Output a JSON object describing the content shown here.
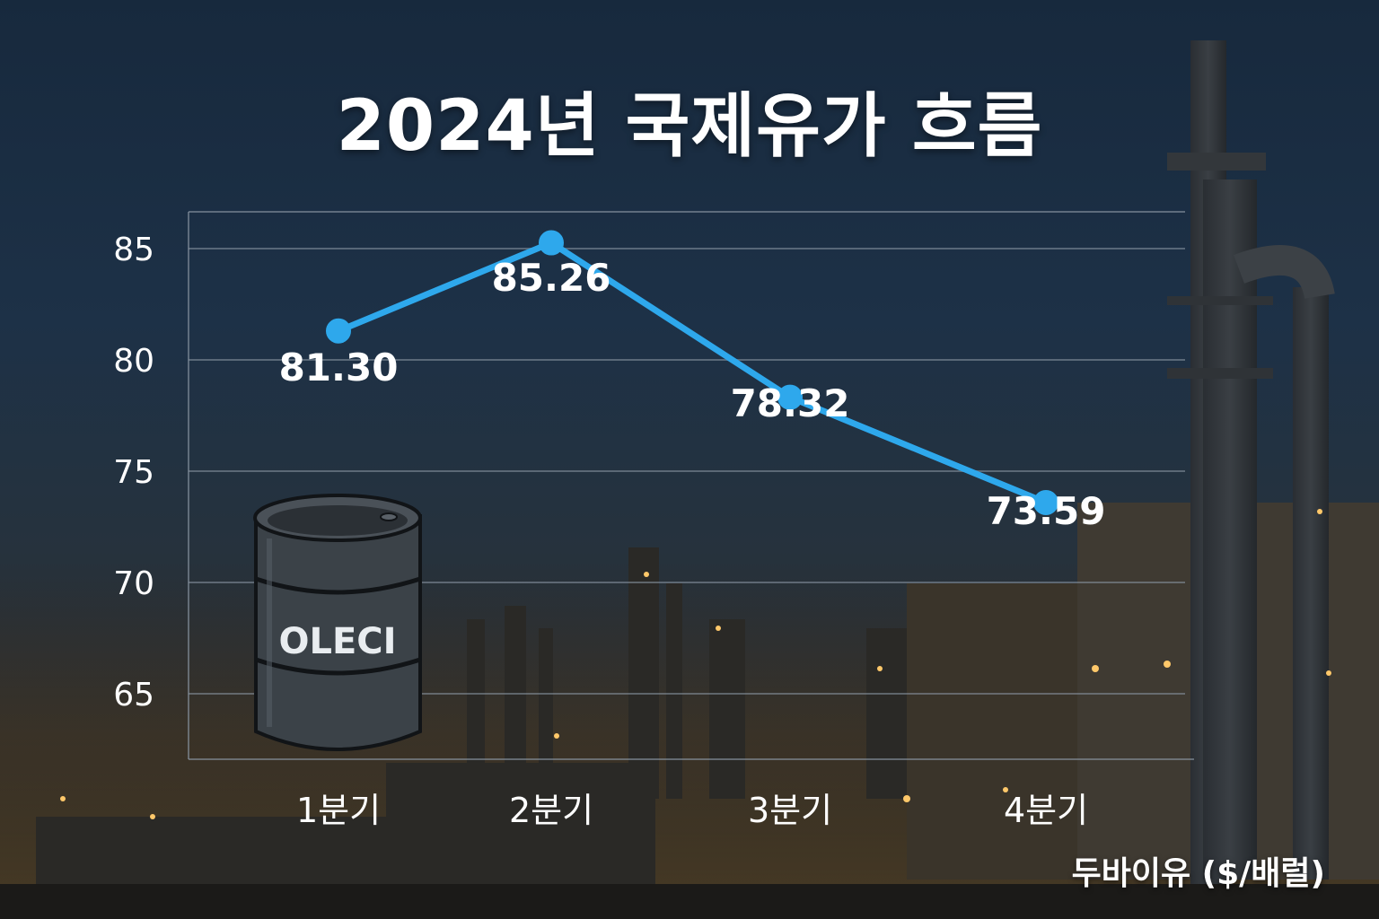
{
  "title": "2024년 국제유가 흐름",
  "unit_label": "두바이유 ($/배럴)",
  "barrel_label": "OLECI",
  "colors": {
    "line": "#2ea8ec",
    "marker": "#2ea8ec",
    "text": "#ffffff",
    "grid": "#8a96a3"
  },
  "chart_data": {
    "type": "line",
    "title": "2024년 국제유가 흐름",
    "xlabel": "",
    "ylabel": "",
    "categories": [
      "1분기",
      "2분기",
      "3분기",
      "4분기"
    ],
    "series": [
      {
        "name": "두바이유 ($/배럴)",
        "values": [
          81.3,
          85.26,
          78.32,
          73.59
        ]
      }
    ],
    "data_labels": [
      "81.30",
      "85.26",
      "78.32",
      "73.59"
    ],
    "y_ticks": [
      65,
      70,
      75,
      80,
      85
    ],
    "ylim": [
      62,
      87
    ],
    "grid": true,
    "legend": "bottom-right"
  }
}
